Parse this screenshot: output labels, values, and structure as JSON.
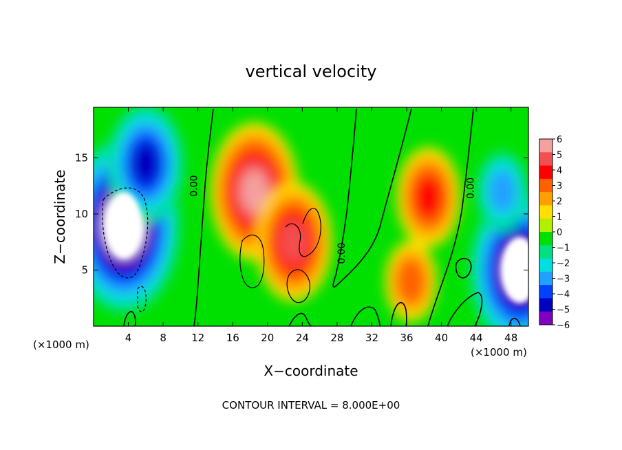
{
  "chart_data": {
    "type": "heatmap",
    "title": "vertical velocity",
    "xlabel": "X−coordinate",
    "ylabel": "Z−coordinate",
    "x_unit_left": "(×1000 m)",
    "x_unit_right": "(×1000 m)",
    "footer": "CONTOUR INTERVAL = 8.000E+00",
    "xlim": [
      0,
      50
    ],
    "ylim": [
      0,
      19.5
    ],
    "x_ticks": [
      4,
      8,
      12,
      16,
      20,
      24,
      28,
      32,
      36,
      40,
      44,
      48
    ],
    "y_ticks": [
      5,
      10,
      15
    ],
    "colorbar": {
      "range": [
        -6,
        6
      ],
      "tick_values": [
        6,
        5,
        4,
        3,
        2,
        1,
        0,
        -1,
        -2,
        -3,
        -4,
        -5,
        -6
      ],
      "tick_labels": [
        "6",
        "5",
        "4",
        "3",
        "2",
        "1",
        "0",
        "−1",
        "−2",
        "−3",
        "−4",
        "−5",
        "−6"
      ],
      "colors": [
        "#f4a0a0",
        "#f25050",
        "#ff0000",
        "#ff6000",
        "#ffa000",
        "#ffe000",
        "#b0f000",
        "#00e000",
        "#00e080",
        "#00e0e0",
        "#20a0ff",
        "#0040ff",
        "#0000c0",
        "#8000c0"
      ]
    },
    "contour_labels": [
      {
        "text": "0.00",
        "x": 11.5,
        "y": 12.5
      },
      {
        "text": "0.00",
        "x": 28.5,
        "y": 6.5
      },
      {
        "text": "0.00",
        "x": 43.3,
        "y": 12.3
      }
    ],
    "features": [
      {
        "type": "updraft",
        "x": 18.5,
        "y": 12.0,
        "w": 5.5
      },
      {
        "type": "updraft",
        "x": 23.0,
        "y": 7.5,
        "w": 4.5
      },
      {
        "type": "updraft",
        "x": 38.5,
        "y": 11.5,
        "w": 4.0
      },
      {
        "type": "updraft",
        "x": 36.5,
        "y": 4.0,
        "w": 3.0
      },
      {
        "type": "downdraft",
        "x": 3.5,
        "y": 9.0,
        "w": -8.0
      },
      {
        "type": "downdraft",
        "x": 6.0,
        "y": 14.5,
        "w": -4.5
      },
      {
        "type": "downdraft",
        "x": 49.0,
        "y": 5.0,
        "w": -6.5
      },
      {
        "type": "downdraft",
        "x": 47.0,
        "y": 12.0,
        "w": -3.0
      }
    ]
  }
}
